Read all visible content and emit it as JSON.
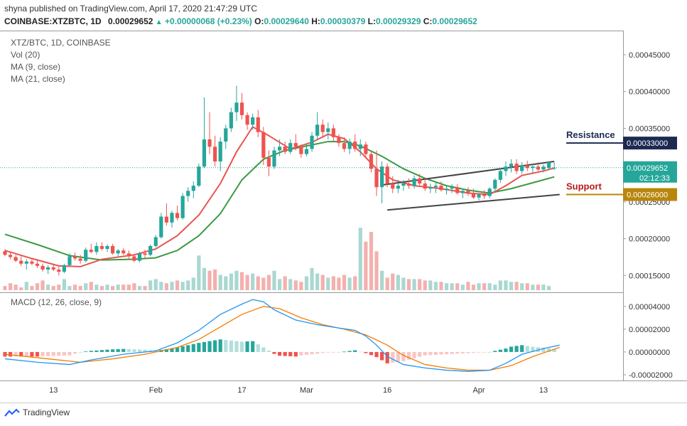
{
  "header": {
    "published": "shyna published on TradingView.com, April 17, 2020 21:47:29 UTC",
    "symbol": "COINBASE:XTZBTC, 1D",
    "price": "0.00029652",
    "change": "+0.00000068 (+0.23%)",
    "o_label": "O:",
    "o": "0.00029640",
    "h_label": "H:",
    "h": "0.00030379",
    "l_label": "L:",
    "l": "0.00029329",
    "c_label": "C:",
    "c": "0.00029652"
  },
  "legend": {
    "title": "XTZ/BTC, 1D, COINBASE",
    "vol": "Vol (20)",
    "ma9": "MA (9, close)",
    "ma21": "MA (21, close)",
    "macd": "MACD (12, 26, close, 9)"
  },
  "annotations": {
    "resistance": "Resistance",
    "support": "Support",
    "resistance_value": "0.00033000",
    "support_value": "0.00026000",
    "last_price": "0.00029652",
    "countdown": "02:12:33"
  },
  "footer": {
    "brand": "TradingView"
  },
  "colors": {
    "up": "#26a69a",
    "down": "#ef5350",
    "ma9": "#e8544e",
    "ma21": "#3b9a44",
    "macd": "#2196f3",
    "signal": "#f57c00",
    "resistance": "#1c2a52",
    "support": "#b8860b",
    "price_tag": "#26a69a"
  },
  "chart_data": [
    {
      "type": "candlestick",
      "title": "XTZ/BTC, 1D, COINBASE",
      "x_ticks": [
        "13",
        "Feb",
        "17",
        "Mar",
        "16",
        "Apr",
        "13"
      ],
      "y_ticks": [
        "0.00045000",
        "0.00040000",
        "0.00035000",
        "0.00030000",
        "0.00025000",
        "0.00020000",
        "0.00015000"
      ],
      "ylim": [
        0.00013,
        0.00048
      ],
      "start_date": "2020-01-04",
      "ohlc": [
        [
          0.000183,
          0.000186,
          0.000176,
          0.000178
        ],
        [
          0.000178,
          0.000182,
          0.000172,
          0.000175
        ],
        [
          0.000175,
          0.000178,
          0.000168,
          0.00017
        ],
        [
          0.00017,
          0.000176,
          0.000163,
          0.000166
        ],
        [
          0.000166,
          0.000172,
          0.000158,
          0.000169
        ],
        [
          0.000169,
          0.000174,
          0.000164,
          0.000166
        ],
        [
          0.000166,
          0.00017,
          0.00016,
          0.000163
        ],
        [
          0.000163,
          0.000166,
          0.000155,
          0.000158
        ],
        [
          0.000158,
          0.000164,
          0.000152,
          0.000161
        ],
        [
          0.000161,
          0.000165,
          0.000156,
          0.000158
        ],
        [
          0.000158,
          0.000162,
          0.00015,
          0.000155
        ],
        [
          0.000155,
          0.000166,
          0.000153,
          0.000164
        ],
        [
          0.000164,
          0.00018,
          0.000162,
          0.000176
        ],
        [
          0.000176,
          0.000181,
          0.00017,
          0.000173
        ],
        [
          0.000173,
          0.000178,
          0.000166,
          0.00017
        ],
        [
          0.00017,
          0.000188,
          0.000168,
          0.000185
        ],
        [
          0.000185,
          0.000193,
          0.00018,
          0.000182
        ],
        [
          0.000182,
          0.000195,
          0.000178,
          0.00019
        ],
        [
          0.00019,
          0.000195,
          0.000184,
          0.000186
        ],
        [
          0.000186,
          0.000192,
          0.000182,
          0.00019
        ],
        [
          0.00019,
          0.000193,
          0.000178,
          0.00018
        ],
        [
          0.00018,
          0.000186,
          0.000176,
          0.000184
        ],
        [
          0.000184,
          0.000187,
          0.000178,
          0.00018
        ],
        [
          0.00018,
          0.000184,
          0.000172,
          0.000176
        ],
        [
          0.000176,
          0.000179,
          0.000168,
          0.00017
        ],
        [
          0.00017,
          0.000182,
          0.000168,
          0.00018
        ],
        [
          0.00018,
          0.000185,
          0.000174,
          0.000178
        ],
        [
          0.000178,
          0.000192,
          0.000176,
          0.00019
        ],
        [
          0.00019,
          0.000205,
          0.000188,
          0.000202
        ],
        [
          0.000202,
          0.000235,
          0.0002,
          0.00023
        ],
        [
          0.00023,
          0.000248,
          0.000218,
          0.000222
        ],
        [
          0.000222,
          0.000238,
          0.000215,
          0.000235
        ],
        [
          0.000235,
          0.000245,
          0.000225,
          0.000228
        ],
        [
          0.000228,
          0.000262,
          0.000226,
          0.000258
        ],
        [
          0.000258,
          0.00027,
          0.00025,
          0.000265
        ],
        [
          0.000265,
          0.000278,
          0.000255,
          0.000272
        ],
        [
          0.000272,
          0.000302,
          0.00027,
          0.000298
        ],
        [
          0.000298,
          0.000392,
          0.000296,
          0.000335
        ],
        [
          0.000335,
          0.000372,
          0.000315,
          0.000325
        ],
        [
          0.000325,
          0.00034,
          0.000298,
          0.000305
        ],
        [
          0.000305,
          0.000338,
          0.000292,
          0.000332
        ],
        [
          0.000332,
          0.000355,
          0.000322,
          0.00035
        ],
        [
          0.00035,
          0.000378,
          0.000345,
          0.000372
        ],
        [
          0.000372,
          0.000408,
          0.00036,
          0.000385
        ],
        [
          0.000385,
          0.000398,
          0.000362,
          0.000368
        ],
        [
          0.000368,
          0.000372,
          0.000348,
          0.000355
        ],
        [
          0.000355,
          0.00037,
          0.000348,
          0.000365
        ],
        [
          0.000365,
          0.000375,
          0.000338,
          0.000345
        ],
        [
          0.000345,
          0.000352,
          0.0003,
          0.00031
        ],
        [
          0.00031,
          0.00032,
          0.000285,
          0.000298
        ],
        [
          0.000298,
          0.000325,
          0.000295,
          0.00032
        ],
        [
          0.00032,
          0.000335,
          0.000312,
          0.000325
        ],
        [
          0.000325,
          0.000332,
          0.000315,
          0.000318
        ],
        [
          0.000318,
          0.000335,
          0.000315,
          0.00033
        ],
        [
          0.00033,
          0.000342,
          0.00032,
          0.000325
        ],
        [
          0.000325,
          0.000328,
          0.00031,
          0.000315
        ],
        [
          0.000315,
          0.000328,
          0.000312,
          0.000322
        ],
        [
          0.000322,
          0.000345,
          0.000318,
          0.00034
        ],
        [
          0.00034,
          0.000372,
          0.000335,
          0.000355
        ],
        [
          0.000355,
          0.000362,
          0.000338,
          0.000345
        ],
        [
          0.000345,
          0.000358,
          0.000335,
          0.00035
        ],
        [
          0.00035,
          0.000355,
          0.000332,
          0.000338
        ],
        [
          0.000338,
          0.000342,
          0.000325,
          0.00033
        ],
        [
          0.00033,
          0.000338,
          0.000318,
          0.000322
        ],
        [
          0.000322,
          0.000336,
          0.000315,
          0.000332
        ],
        [
          0.000332,
          0.000342,
          0.000318,
          0.000322
        ],
        [
          0.000322,
          0.000335,
          0.000312,
          0.000328
        ],
        [
          0.000328,
          0.000332,
          0.00031,
          0.000315
        ],
        [
          0.000315,
          0.00032,
          0.00029,
          0.000295
        ],
        [
          0.000295,
          0.00032,
          0.000258,
          0.00027
        ],
        [
          0.00027,
          0.000305,
          0.000248,
          0.000298
        ],
        [
          0.000298,
          0.000302,
          0.00027,
          0.000275
        ],
        [
          0.000275,
          0.000285,
          0.000262,
          0.000268
        ],
        [
          0.000268,
          0.00028,
          0.000262,
          0.000272
        ],
        [
          0.000272,
          0.00028,
          0.000265,
          0.000275
        ],
        [
          0.000275,
          0.000282,
          0.000268,
          0.000272
        ],
        [
          0.000272,
          0.000286,
          0.000268,
          0.000282
        ],
        [
          0.000282,
          0.000288,
          0.000272,
          0.000275
        ],
        [
          0.000275,
          0.000282,
          0.000265,
          0.000268
        ],
        [
          0.000268,
          0.000275,
          0.000262,
          0.00027
        ],
        [
          0.00027,
          0.000276,
          0.000262,
          0.000272
        ],
        [
          0.000272,
          0.000278,
          0.000264,
          0.000266
        ],
        [
          0.000266,
          0.000272,
          0.00026,
          0.000268
        ],
        [
          0.000268,
          0.000274,
          0.000262,
          0.00027
        ],
        [
          0.00027,
          0.000274,
          0.00026,
          0.000262
        ],
        [
          0.000262,
          0.000268,
          0.000255,
          0.000265
        ],
        [
          0.000265,
          0.00027,
          0.000258,
          0.000262
        ],
        [
          0.000262,
          0.000268,
          0.000254,
          0.000256
        ],
        [
          0.000256,
          0.000262,
          0.000252,
          0.00026
        ],
        [
          0.00026,
          0.000266,
          0.000254,
          0.000258
        ],
        [
          0.000258,
          0.00027,
          0.000255,
          0.000268
        ],
        [
          0.000268,
          0.000282,
          0.000264,
          0.00028
        ],
        [
          0.00028,
          0.000296,
          0.000276,
          0.000292
        ],
        [
          0.000292,
          0.000305,
          0.000285,
          0.000298
        ],
        [
          0.000298,
          0.000308,
          0.00029,
          0.000302
        ],
        [
          0.000302,
          0.000308,
          0.000288,
          0.000292
        ],
        [
          0.000292,
          0.000304,
          0.000288,
          0.0003
        ],
        [
          0.0003,
          0.000306,
          0.000292,
          0.000296
        ],
        [
          0.000296,
          0.000302,
          0.00029,
          0.000298
        ],
        [
          0.000298,
          0.000304,
          0.000292,
          0.000294
        ],
        [
          0.000294,
          0.000301,
          0.00029,
          0.000298
        ],
        [
          0.000296,
          0.000304,
          0.000293,
          0.000304
        ],
        [
          0.0002964,
          0.00030379,
          0.00029329,
          0.00029652
        ]
      ],
      "volume": [
        3,
        5,
        4,
        2,
        6,
        3,
        5,
        7,
        4,
        3,
        4,
        8,
        3,
        4,
        3,
        5,
        6,
        4,
        3,
        4,
        3,
        4,
        4,
        4,
        5,
        3,
        3,
        7,
        8,
        6,
        5,
        6,
        7,
        6,
        7,
        9,
        25,
        16,
        14,
        15,
        11,
        10,
        12,
        14,
        13,
        11,
        12,
        10,
        9,
        11,
        14,
        8,
        10,
        8,
        7,
        6,
        10,
        16,
        12,
        11,
        9,
        10,
        9,
        11,
        9,
        10,
        45,
        35,
        42,
        28,
        14,
        9,
        12,
        11,
        9,
        8,
        8,
        8,
        7,
        7,
        6,
        6,
        5,
        5,
        5,
        4,
        6,
        4,
        5,
        5,
        5,
        4,
        7,
        7,
        6,
        6,
        5,
        5,
        4,
        4,
        4,
        3
      ],
      "ma9": [
        [
          0,
          0.000184
        ],
        [
          5,
          0.000173
        ],
        [
          10,
          0.000163
        ],
        [
          14,
          0.000162
        ],
        [
          18,
          0.000172
        ],
        [
          24,
          0.000178
        ],
        [
          28,
          0.000186
        ],
        [
          32,
          0.000204
        ],
        [
          36,
          0.000232
        ],
        [
          40,
          0.000275
        ],
        [
          43,
          0.000318
        ],
        [
          46,
          0.000352
        ],
        [
          49,
          0.00034
        ],
        [
          53,
          0.000322
        ],
        [
          57,
          0.000331
        ],
        [
          60,
          0.000342
        ],
        [
          63,
          0.000336
        ],
        [
          66,
          0.000318
        ],
        [
          69,
          0.000295
        ],
        [
          72,
          0.00028
        ],
        [
          76,
          0.000272
        ],
        [
          81,
          0.000268
        ],
        [
          86,
          0.000262
        ],
        [
          90,
          0.00026
        ],
        [
          93,
          0.000272
        ],
        [
          96,
          0.000286
        ],
        [
          100,
          0.000292
        ],
        [
          102,
          0.000296
        ]
      ],
      "ma21": [
        [
          0,
          0.000206
        ],
        [
          6,
          0.000192
        ],
        [
          12,
          0.000177
        ],
        [
          18,
          0.000171
        ],
        [
          24,
          0.000172
        ],
        [
          28,
          0.000174
        ],
        [
          32,
          0.000184
        ],
        [
          36,
          0.000204
        ],
        [
          40,
          0.000234
        ],
        [
          44,
          0.00028
        ],
        [
          48,
          0.000308
        ],
        [
          52,
          0.00032
        ],
        [
          56,
          0.000326
        ],
        [
          60,
          0.000332
        ],
        [
          63,
          0.000332
        ],
        [
          66,
          0.000326
        ],
        [
          70,
          0.000312
        ],
        [
          74,
          0.000295
        ],
        [
          78,
          0.000282
        ],
        [
          82,
          0.000272
        ],
        [
          86,
          0.000266
        ],
        [
          90,
          0.000262
        ],
        [
          94,
          0.000268
        ],
        [
          98,
          0.000276
        ],
        [
          102,
          0.000284
        ]
      ],
      "trendlines": [
        {
          "name": "upper channel",
          "points": [
            [
              70,
              0.000273
            ],
            [
              102,
              0.000305
            ]
          ]
        },
        {
          "name": "lower channel",
          "points": [
            [
              71,
              0.000239
            ],
            [
              103,
              0.00026
            ]
          ]
        }
      ]
    },
    {
      "type": "line",
      "title": "MACD (12, 26, close, 9)",
      "y_ticks": [
        "0.00004000",
        "0.00002000",
        "0.00000000",
        "-0.00002000"
      ],
      "ylim": [
        -2.5e-05,
        4.8e-05
      ],
      "macd": [
        [
          0,
          -6e-06
        ],
        [
          6,
          -9e-06
        ],
        [
          12,
          -1.1e-05
        ],
        [
          16,
          -7e-06
        ],
        [
          22,
          -2e-06
        ],
        [
          28,
          1e-06
        ],
        [
          32,
          8e-06
        ],
        [
          36,
          1.9e-05
        ],
        [
          40,
          3.3e-05
        ],
        [
          44,
          4.2e-05
        ],
        [
          46,
          4.6e-05
        ],
        [
          48,
          4.4e-05
        ],
        [
          50,
          3.7e-05
        ],
        [
          54,
          2.8e-05
        ],
        [
          58,
          2.4e-05
        ],
        [
          62,
          2.1e-05
        ],
        [
          65,
          1.9e-05
        ],
        [
          67,
          1.4e-05
        ],
        [
          69,
          6e-06
        ],
        [
          71,
          -4e-06
        ],
        [
          74,
          -1.1e-05
        ],
        [
          78,
          -1.4e-05
        ],
        [
          82,
          -1.6e-05
        ],
        [
          86,
          -1.7e-05
        ],
        [
          90,
          -1.6e-05
        ],
        [
          93,
          -1e-05
        ],
        [
          96,
          -2e-06
        ],
        [
          100,
          3e-06
        ],
        [
          103,
          6e-06
        ]
      ],
      "signal": [
        [
          0,
          -2e-06
        ],
        [
          8,
          -6e-06
        ],
        [
          14,
          -9e-06
        ],
        [
          20,
          -6e-06
        ],
        [
          26,
          -2e-06
        ],
        [
          32,
          4e-06
        ],
        [
          36,
          1.1e-05
        ],
        [
          40,
          2.2e-05
        ],
        [
          44,
          3.3e-05
        ],
        [
          48,
          4e-05
        ],
        [
          51,
          3.8e-05
        ],
        [
          55,
          3e-05
        ],
        [
          59,
          2.4e-05
        ],
        [
          63,
          2e-05
        ],
        [
          67,
          1.5e-05
        ],
        [
          71,
          6e-06
        ],
        [
          74,
          -3e-06
        ],
        [
          78,
          -1.1e-05
        ],
        [
          82,
          -1.4e-05
        ],
        [
          86,
          -1.6e-05
        ],
        [
          90,
          -1.6e-05
        ],
        [
          94,
          -1.2e-05
        ],
        [
          98,
          -4e-06
        ],
        [
          103,
          4e-06
        ]
      ]
    }
  ]
}
